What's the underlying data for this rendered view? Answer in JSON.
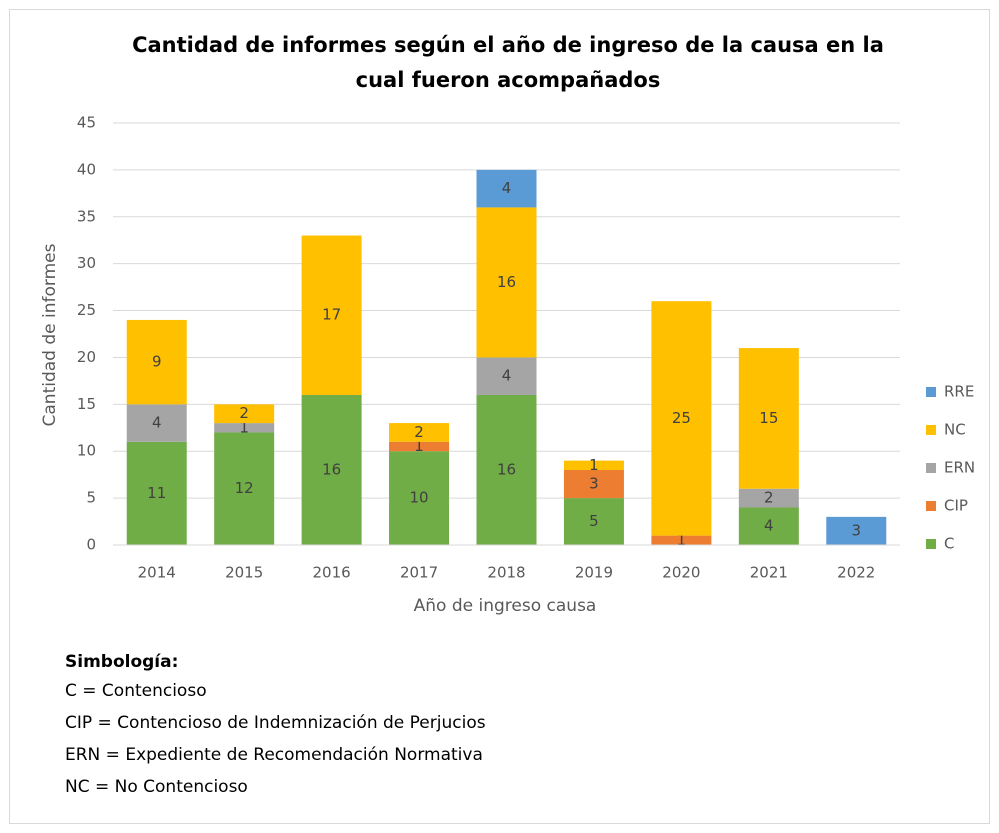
{
  "chart_data": {
    "type": "stacked_bar",
    "title": [
      "Cantidad de informes según el año de ingreso de la causa en la",
      "cual fueron acompañados"
    ],
    "x_label": "Año de ingreso causa",
    "y_label": "Cantidad de informes",
    "categories": [
      "2014",
      "2015",
      "2016",
      "2017",
      "2018",
      "2019",
      "2020",
      "2021",
      "2022"
    ],
    "series": [
      {
        "name": "C",
        "color": "#70ad47",
        "values": [
          11,
          12,
          16,
          10,
          16,
          5,
          0,
          4,
          0
        ]
      },
      {
        "name": "CIP",
        "color": "#ed7d31",
        "values": [
          0,
          0,
          0,
          1,
          0,
          3,
          1,
          0,
          0
        ]
      },
      {
        "name": "ERN",
        "color": "#a5a5a5",
        "values": [
          4,
          1,
          0,
          0,
          4,
          0,
          0,
          2,
          0
        ]
      },
      {
        "name": "NC",
        "color": "#ffc000",
        "values": [
          9,
          2,
          17,
          2,
          16,
          1,
          25,
          15,
          0
        ]
      },
      {
        "name": "RRE",
        "color": "#5b9bd5",
        "values": [
          0,
          0,
          0,
          0,
          4,
          0,
          0,
          0,
          3
        ]
      }
    ],
    "ylim": [
      0,
      45
    ],
    "yticks": [
      0,
      5,
      10,
      15,
      20,
      25,
      30,
      35,
      40,
      45
    ],
    "grid": true,
    "legend": "right"
  },
  "symbology": {
    "heading": "Simbología:",
    "lines": [
      "C = Contencioso",
      "CIP = Contencioso de Indemnización de Perjucios",
      "ERN = Expediente de Recomendación Normativa",
      "NC = No Contencioso"
    ]
  }
}
